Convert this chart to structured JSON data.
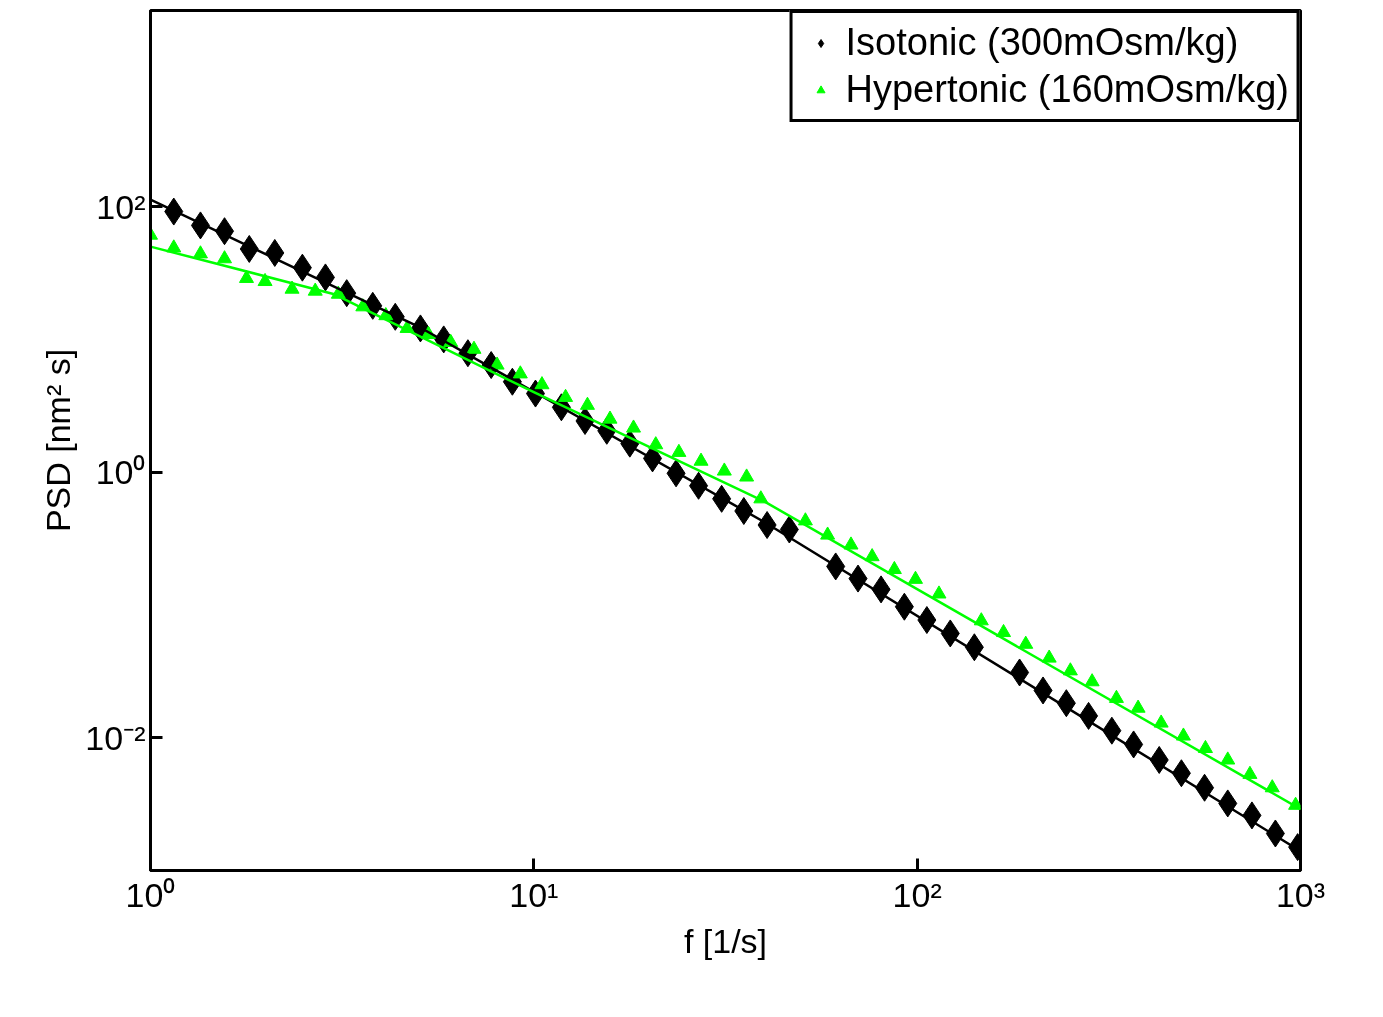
{
  "chart_data": {
    "type": "scatter",
    "xlabel": "f [1/s]",
    "ylabel": "PSD [nm² s]",
    "log": "xy",
    "grid": false,
    "legend": "top right",
    "xlim": [
      1,
      1000
    ],
    "ylim": [
      0.001,
      3000
    ],
    "xticks": [
      {
        "value": 1,
        "label": "10⁰"
      },
      {
        "value": 10,
        "label": "10¹"
      },
      {
        "value": 100,
        "label": "10²"
      },
      {
        "value": 1000,
        "label": "10³"
      }
    ],
    "yticks": [
      {
        "value": 0.01,
        "label": "10⁻²"
      },
      {
        "value": 1,
        "label": "10⁰"
      },
      {
        "value": 100,
        "label": "10²"
      }
    ],
    "series": [
      {
        "name": "Isotonic (300mOsm/kg)",
        "marker": "diamond",
        "color": "#000000",
        "x": [
          1.15,
          1.35,
          1.56,
          1.81,
          2.11,
          2.49,
          2.86,
          3.25,
          3.8,
          4.35,
          5.06,
          5.82,
          6.73,
          7.74,
          8.79,
          10.1,
          11.8,
          13.6,
          15.5,
          17.8,
          20.4,
          23.5,
          26.9,
          30.9,
          35.3,
          40.6,
          46.4,
          61.3,
          70.1,
          80.5,
          92.6,
          106,
          122,
          141,
          185,
          213,
          245,
          280,
          322,
          367,
          428,
          489,
          562,
          646,
          747,
          860,
          983
        ],
        "values": [
          91.8,
          72.2,
          65.3,
          48.0,
          44.8,
          34.7,
          29.3,
          22.3,
          17.9,
          14.8,
          12.1,
          10.0,
          7.87,
          6.41,
          4.8,
          3.91,
          3.08,
          2.43,
          2.05,
          1.64,
          1.27,
          0.98,
          0.79,
          0.63,
          0.51,
          0.4,
          0.37,
          0.195,
          0.158,
          0.131,
          0.097,
          0.077,
          0.061,
          0.048,
          0.031,
          0.0227,
          0.0182,
          0.0146,
          0.0113,
          0.0089,
          0.0068,
          0.0054,
          0.0042,
          0.0032,
          0.0026,
          0.0019,
          0.0015
        ]
      },
      {
        "name": "Hypertonic (160mOsm/kg)",
        "marker": "triangle",
        "color": "#00ff00",
        "x": [
          1.0,
          1.15,
          1.35,
          1.56,
          1.78,
          1.99,
          2.34,
          2.69,
          3.09,
          3.58,
          4.11,
          4.67,
          5.31,
          6.07,
          6.98,
          8.02,
          9.22,
          10.5,
          12.1,
          13.8,
          15.8,
          18.2,
          20.8,
          23.9,
          27.3,
          31.4,
          35.9,
          39.1,
          51.1,
          58.4,
          67.2,
          76.3,
          87.2,
          99,
          114,
          147,
          168,
          192,
          221,
          251,
          286,
          331,
          377,
          433,
          495,
          565,
          646,
          738,
          844,
          971
        ],
        "values": [
          61.0,
          48.9,
          44.1,
          40.5,
          28.8,
          27.3,
          23.9,
          23.1,
          21.9,
          17.6,
          15.1,
          12.1,
          10.9,
          9.5,
          8.43,
          6.41,
          5.5,
          4.56,
          3.66,
          3.19,
          2.51,
          2.15,
          1.61,
          1.41,
          1.21,
          1.02,
          0.92,
          0.63,
          0.43,
          0.336,
          0.283,
          0.231,
          0.185,
          0.156,
          0.121,
          0.076,
          0.062,
          0.0506,
          0.0398,
          0.0319,
          0.0264,
          0.0198,
          0.0167,
          0.0129,
          0.0103,
          0.0083,
          0.0068,
          0.0053,
          0.0042,
          0.0031
        ]
      },
      {
        "type": "line",
        "color": "#000000",
        "x": [
          1,
          5,
          40,
          1000
        ],
        "values": [
          113,
          12.5,
          0.42,
          0.0014
        ]
      },
      {
        "type": "line",
        "color": "#00ff00",
        "x": [
          1,
          3,
          10,
          40,
          1000
        ],
        "values": [
          50,
          22,
          4,
          0.6,
          0.0029
        ]
      }
    ]
  }
}
